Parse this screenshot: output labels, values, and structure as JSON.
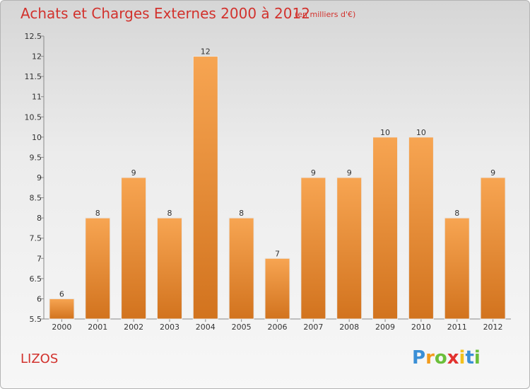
{
  "chart_data": {
    "type": "bar",
    "title": "Achats et Charges Externes 2000 à 2012",
    "subtitle": "(en milliers d'€)",
    "categories": [
      "2000",
      "2001",
      "2002",
      "2003",
      "2004",
      "2005",
      "2006",
      "2007",
      "2008",
      "2009",
      "2010",
      "2011",
      "2012"
    ],
    "values": [
      6,
      8,
      9,
      8,
      12,
      8,
      7,
      9,
      9,
      10,
      10,
      8,
      9
    ],
    "ylim": [
      5.5,
      12.5
    ],
    "yticks": [
      5.5,
      6,
      6.5,
      7,
      7.5,
      8,
      8.5,
      9,
      9.5,
      10,
      10.5,
      11,
      11.5,
      12,
      12.5
    ],
    "ytick_labels": [
      "5.5",
      "6",
      "6.5",
      "7",
      "7.5",
      "8",
      "8.5",
      "9",
      "9.5",
      "10",
      "10.5",
      "11",
      "11.5",
      "12",
      "12.5"
    ],
    "grid": false,
    "bar_color_top": "#f7a552",
    "bar_color_bottom": "#d2731e"
  },
  "commune": "LIZOS",
  "logo": {
    "letters": [
      "P",
      "r",
      "o",
      "x",
      "i",
      "t",
      "i"
    ],
    "colors": [
      "#3a8fd6",
      "#f29b1d",
      "#6bbf3a",
      "#e2322f",
      "#f2c11d",
      "#3a8fd6",
      "#6bbf3a"
    ]
  },
  "colors": {
    "title": "#d2322d"
  }
}
